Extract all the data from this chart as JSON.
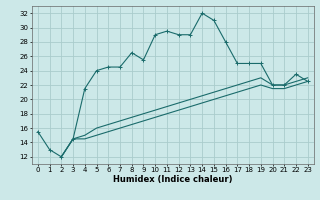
{
  "xlabel": "Humidex (Indice chaleur)",
  "ylabel": "",
  "bg_color": "#cce8e8",
  "grid_color": "#aacccc",
  "line_color": "#1a6b6b",
  "xlim": [
    -0.5,
    23.5
  ],
  "ylim": [
    11,
    33
  ],
  "xticks": [
    0,
    1,
    2,
    3,
    4,
    5,
    6,
    7,
    8,
    9,
    10,
    11,
    12,
    13,
    14,
    15,
    16,
    17,
    18,
    19,
    20,
    21,
    22,
    23
  ],
  "yticks": [
    12,
    14,
    16,
    18,
    20,
    22,
    24,
    26,
    28,
    30,
    32
  ],
  "series1_x": [
    0,
    1,
    2,
    3,
    4,
    5,
    6,
    7,
    8,
    9,
    10,
    11,
    12,
    13,
    14,
    15,
    16,
    17,
    18,
    19,
    20,
    21,
    22,
    23
  ],
  "series1_y": [
    15.5,
    13,
    12,
    14.5,
    21.5,
    24,
    24.5,
    24.5,
    26.5,
    25.5,
    29,
    29.5,
    29,
    29,
    32,
    31,
    28,
    25,
    25,
    25,
    22,
    22,
    23.5,
    22.5
  ],
  "series2_x": [
    2,
    3,
    4,
    5,
    6,
    7,
    8,
    9,
    10,
    11,
    12,
    13,
    14,
    15,
    16,
    17,
    18,
    19,
    20,
    21,
    22,
    23
  ],
  "series2_y": [
    12,
    14.5,
    15,
    16,
    16.5,
    17,
    17.5,
    18,
    18.5,
    19,
    19.5,
    20,
    20.5,
    21,
    21.5,
    22,
    22.5,
    23,
    22,
    22,
    22.5,
    23
  ],
  "series3_x": [
    2,
    3,
    4,
    5,
    6,
    7,
    8,
    9,
    10,
    11,
    12,
    13,
    14,
    15,
    16,
    17,
    18,
    19,
    20,
    21,
    22,
    23
  ],
  "series3_y": [
    12,
    14.5,
    14.5,
    15,
    15.5,
    16,
    16.5,
    17,
    17.5,
    18,
    18.5,
    19,
    19.5,
    20,
    20.5,
    21,
    21.5,
    22,
    21.5,
    21.5,
    22,
    22.5
  ],
  "xlabel_fontsize": 6.0,
  "tick_fontsize": 5.0
}
